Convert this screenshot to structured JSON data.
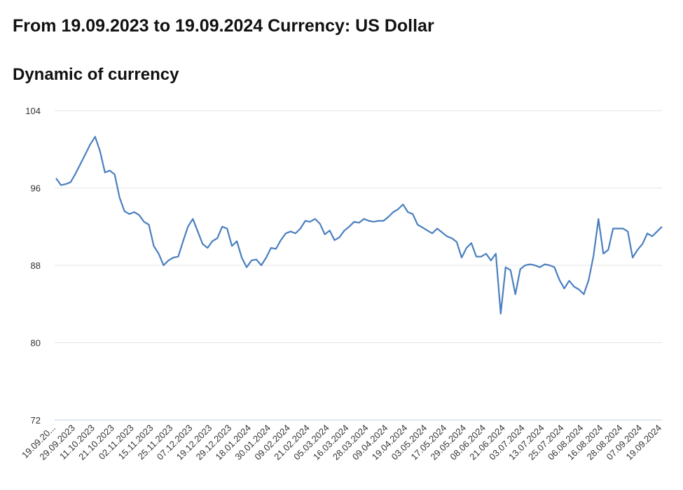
{
  "chart_data": {
    "type": "line",
    "title": "From 19.09.2023 to 19.09.2024 Currency: US Dollar",
    "subtitle": "Dynamic of currency",
    "categories": [
      "19.09.20...",
      null,
      null,
      null,
      "29.09.2023",
      null,
      null,
      null,
      "11.10.2023",
      null,
      null,
      null,
      "21.10.2023",
      null,
      null,
      null,
      "02.11.2023",
      null,
      null,
      null,
      "15.11.2023",
      null,
      null,
      null,
      "25.11.2023",
      null,
      null,
      null,
      "07.12.2023",
      null,
      null,
      null,
      "19.12.2023",
      null,
      null,
      null,
      "29.12.2023",
      null,
      null,
      null,
      "18.01.2024",
      null,
      null,
      null,
      "30.01.2024",
      null,
      null,
      null,
      "09.02.2024",
      null,
      null,
      null,
      "21.02.2024",
      null,
      null,
      null,
      "05.03.2024",
      null,
      null,
      null,
      "16.03.2024",
      null,
      null,
      null,
      "28.03.2024",
      null,
      null,
      null,
      "09.04.2024",
      null,
      null,
      null,
      "19.04.2024",
      null,
      null,
      null,
      "03.05.2024",
      null,
      null,
      null,
      "17.05.2024",
      null,
      null,
      null,
      "29.05.2024",
      null,
      null,
      null,
      "08.06.2024",
      null,
      null,
      null,
      "21.06.2024",
      null,
      null,
      null,
      "03.07.2024",
      null,
      null,
      null,
      "13.07.2024",
      null,
      null,
      null,
      "25.07.2024",
      null,
      null,
      null,
      "06.08.2024",
      null,
      null,
      null,
      "16.08.2024",
      null,
      null,
      null,
      "28.08.2024",
      null,
      null,
      null,
      "07.09.2024",
      null,
      null,
      null,
      "19.09.2024"
    ],
    "values": [
      97.0,
      96.3,
      96.4,
      96.6,
      97.5,
      98.5,
      99.5,
      100.5,
      101.3,
      99.8,
      97.6,
      97.8,
      97.4,
      95.0,
      93.6,
      93.3,
      93.5,
      93.2,
      92.5,
      92.2,
      90.0,
      89.2,
      88.0,
      88.5,
      88.8,
      88.9,
      90.5,
      92.0,
      92.8,
      91.5,
      90.2,
      89.8,
      90.5,
      90.8,
      92.0,
      91.8,
      90.0,
      90.5,
      88.8,
      87.8,
      88.5,
      88.6,
      88.0,
      88.8,
      89.8,
      89.7,
      90.6,
      91.3,
      91.5,
      91.3,
      91.8,
      92.6,
      92.5,
      92.8,
      92.3,
      91.2,
      91.6,
      90.6,
      90.9,
      91.6,
      92.0,
      92.5,
      92.4,
      92.8,
      92.6,
      92.5,
      92.6,
      92.6,
      93.0,
      93.5,
      93.8,
      94.3,
      93.5,
      93.3,
      92.2,
      91.9,
      91.6,
      91.3,
      91.8,
      91.4,
      91.0,
      90.8,
      90.4,
      88.8,
      89.8,
      90.3,
      88.9,
      88.9,
      89.2,
      88.5,
      89.2,
      83.0,
      87.8,
      87.5,
      85.0,
      87.6,
      88.0,
      88.1,
      88.0,
      87.8,
      88.1,
      88.0,
      87.8,
      86.5,
      85.6,
      86.4,
      85.8,
      85.5,
      85.0,
      86.5,
      89.0,
      92.8,
      89.2,
      89.6,
      91.8,
      91.8,
      91.8,
      91.5,
      88.8,
      89.6,
      90.2,
      91.3,
      91.0,
      91.5,
      92.0
    ],
    "color": "#4a7fbf",
    "ylim": [
      72,
      104
    ],
    "yticks": [
      72,
      80,
      88,
      96,
      104
    ],
    "grid": true
  }
}
